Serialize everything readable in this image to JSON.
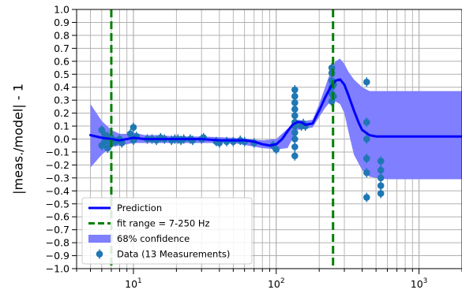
{
  "chart_data": {
    "type": "scatter",
    "title": "",
    "xlabel": "",
    "ylabel": "|meas./model| - 1",
    "x_scale": "log",
    "xlim": [
      4,
      2000
    ],
    "ylim": [
      -1.0,
      1.0
    ],
    "grid": true,
    "legend_position": "lower-left",
    "y_ticks": [
      "1.0",
      "0.9",
      "0.8",
      "0.7",
      "0.6",
      "0.5",
      "0.4",
      "0.3",
      "0.2",
      "0.1",
      "0.0",
      "−0.1",
      "−0.2",
      "−0.3",
      "−0.4",
      "−0.5",
      "−0.6",
      "−0.7",
      "−0.8",
      "−0.9",
      "−1.0"
    ],
    "x_ticks": [
      {
        "value": 10,
        "base": "10",
        "exp": "1"
      },
      {
        "value": 100,
        "base": "10",
        "exp": "2"
      },
      {
        "value": 1000,
        "base": "10",
        "exp": "3"
      }
    ],
    "legend": [
      {
        "label": "Prediction",
        "kind": "line",
        "color": "#0000ff"
      },
      {
        "label": "fit range = 7-250 Hz",
        "kind": "dashed",
        "color": "#008000"
      },
      {
        "label": "68% confidence",
        "kind": "patch",
        "color": "#7f7fff"
      },
      {
        "label": "Data (13 Measurements)",
        "kind": "errorbar",
        "color": "#1f77b4"
      }
    ],
    "fit_range": {
      "low": 7,
      "high": 250,
      "color": "#008000"
    },
    "prediction": {
      "name": "Prediction",
      "color": "#0000ff",
      "x": [
        5,
        6,
        7,
        8,
        9,
        10,
        12,
        15,
        20,
        30,
        40,
        50,
        60,
        70,
        80,
        90,
        100,
        110,
        120,
        130,
        140,
        150,
        160,
        180,
        200,
        220,
        240,
        260,
        280,
        300,
        320,
        350,
        380,
        400,
        450,
        500,
        600,
        800,
        1000,
        2000
      ],
      "y": [
        0.03,
        0.01,
        0.0,
        -0.01,
        0.0,
        0.01,
        0.0,
        0.0,
        0.0,
        0.0,
        -0.01,
        -0.01,
        -0.01,
        -0.02,
        -0.04,
        -0.05,
        -0.04,
        0.0,
        0.06,
        0.11,
        0.13,
        0.13,
        0.11,
        0.12,
        0.22,
        0.32,
        0.4,
        0.45,
        0.46,
        0.42,
        0.34,
        0.22,
        0.12,
        0.07,
        0.03,
        0.02,
        0.02,
        0.02,
        0.02,
        0.02
      ]
    },
    "confidence_band": {
      "name": "68% confidence",
      "color": "#7f7fff",
      "x": [
        5,
        6,
        7,
        8,
        9,
        10,
        12,
        15,
        20,
        30,
        50,
        80,
        100,
        120,
        140,
        160,
        180,
        200,
        220,
        240,
        260,
        280,
        300,
        320,
        350,
        400,
        450,
        500,
        600,
        800,
        1000,
        2000
      ],
      "upper": [
        0.27,
        0.14,
        0.07,
        0.04,
        0.04,
        0.05,
        0.03,
        0.03,
        0.02,
        0.02,
        0.01,
        -0.01,
        0.0,
        0.08,
        0.15,
        0.14,
        0.15,
        0.27,
        0.4,
        0.52,
        0.6,
        0.62,
        0.58,
        0.52,
        0.46,
        0.4,
        0.37,
        0.37,
        0.37,
        0.37,
        0.37,
        0.37
      ],
      "lower": [
        -0.22,
        -0.12,
        -0.06,
        -0.05,
        -0.04,
        -0.03,
        -0.03,
        -0.03,
        -0.03,
        -0.03,
        -0.03,
        -0.07,
        -0.08,
        -0.07,
        0.07,
        0.08,
        0.09,
        0.17,
        0.24,
        0.29,
        0.29,
        0.27,
        0.2,
        0.06,
        -0.12,
        -0.24,
        -0.29,
        -0.3,
        -0.31,
        -0.31,
        -0.31,
        -0.31
      ]
    },
    "data": {
      "name": "Data (13 Measurements)",
      "color": "#1f77b4",
      "points": [
        {
          "x": 6.0,
          "y": 0.07
        },
        {
          "x": 6.0,
          "y": -0.05
        },
        {
          "x": 6.3,
          "y": -0.02
        },
        {
          "x": 6.3,
          "y": 0.03
        },
        {
          "x": 6.6,
          "y": -0.07
        },
        {
          "x": 6.6,
          "y": 0.02
        },
        {
          "x": 7.0,
          "y": -0.03
        },
        {
          "x": 7.0,
          "y": 0.01
        },
        {
          "x": 7.5,
          "y": -0.02
        },
        {
          "x": 8.0,
          "y": 0.0
        },
        {
          "x": 8.3,
          "y": -0.03
        },
        {
          "x": 9.5,
          "y": 0.04
        },
        {
          "x": 10.0,
          "y": 0.09
        },
        {
          "x": 10.0,
          "y": -0.01
        },
        {
          "x": 10.5,
          "y": 0.02
        },
        {
          "x": 12.5,
          "y": 0.0
        },
        {
          "x": 13.5,
          "y": 0.0
        },
        {
          "x": 14.5,
          "y": -0.01
        },
        {
          "x": 15.5,
          "y": 0.01
        },
        {
          "x": 16.5,
          "y": 0.0
        },
        {
          "x": 18.5,
          "y": -0.01
        },
        {
          "x": 19.5,
          "y": 0.0
        },
        {
          "x": 20.5,
          "y": 0.0
        },
        {
          "x": 21.5,
          "y": -0.01
        },
        {
          "x": 22.5,
          "y": 0.0
        },
        {
          "x": 25,
          "y": 0.0
        },
        {
          "x": 26,
          "y": -0.01
        },
        {
          "x": 30,
          "y": 0.0
        },
        {
          "x": 31,
          "y": 0.01
        },
        {
          "x": 38,
          "y": -0.02
        },
        {
          "x": 40,
          "y": -0.03
        },
        {
          "x": 45,
          "y": -0.02
        },
        {
          "x": 50,
          "y": -0.02
        },
        {
          "x": 56,
          "y": -0.01
        },
        {
          "x": 60,
          "y": -0.02
        },
        {
          "x": 70,
          "y": -0.03
        },
        {
          "x": 95,
          "y": -0.05
        },
        {
          "x": 100,
          "y": -0.08
        },
        {
          "x": 135,
          "y": 0.38
        },
        {
          "x": 135,
          "y": 0.33
        },
        {
          "x": 135,
          "y": 0.28
        },
        {
          "x": 135,
          "y": 0.23
        },
        {
          "x": 135,
          "y": 0.18
        },
        {
          "x": 135,
          "y": 0.13
        },
        {
          "x": 135,
          "y": 0.1
        },
        {
          "x": 135,
          "y": 0.05
        },
        {
          "x": 135,
          "y": 0.0
        },
        {
          "x": 135,
          "y": -0.06
        },
        {
          "x": 135,
          "y": -0.13
        },
        {
          "x": 150,
          "y": 0.1
        },
        {
          "x": 155,
          "y": 0.12
        },
        {
          "x": 160,
          "y": 0.1
        },
        {
          "x": 245,
          "y": 0.55
        },
        {
          "x": 245,
          "y": 0.51
        },
        {
          "x": 245,
          "y": 0.45
        },
        {
          "x": 245,
          "y": 0.4
        },
        {
          "x": 245,
          "y": 0.35
        },
        {
          "x": 245,
          "y": 0.29
        },
        {
          "x": 252,
          "y": 0.42
        },
        {
          "x": 252,
          "y": 0.33
        },
        {
          "x": 430,
          "y": 0.44
        },
        {
          "x": 430,
          "y": 0.13
        },
        {
          "x": 430,
          "y": 0.0
        },
        {
          "x": 430,
          "y": -0.15
        },
        {
          "x": 430,
          "y": -0.26
        },
        {
          "x": 430,
          "y": -0.45
        },
        {
          "x": 540,
          "y": -0.17
        },
        {
          "x": 540,
          "y": -0.24
        },
        {
          "x": 540,
          "y": -0.3
        },
        {
          "x": 540,
          "y": -0.36
        },
        {
          "x": 540,
          "y": -0.42
        }
      ]
    }
  }
}
